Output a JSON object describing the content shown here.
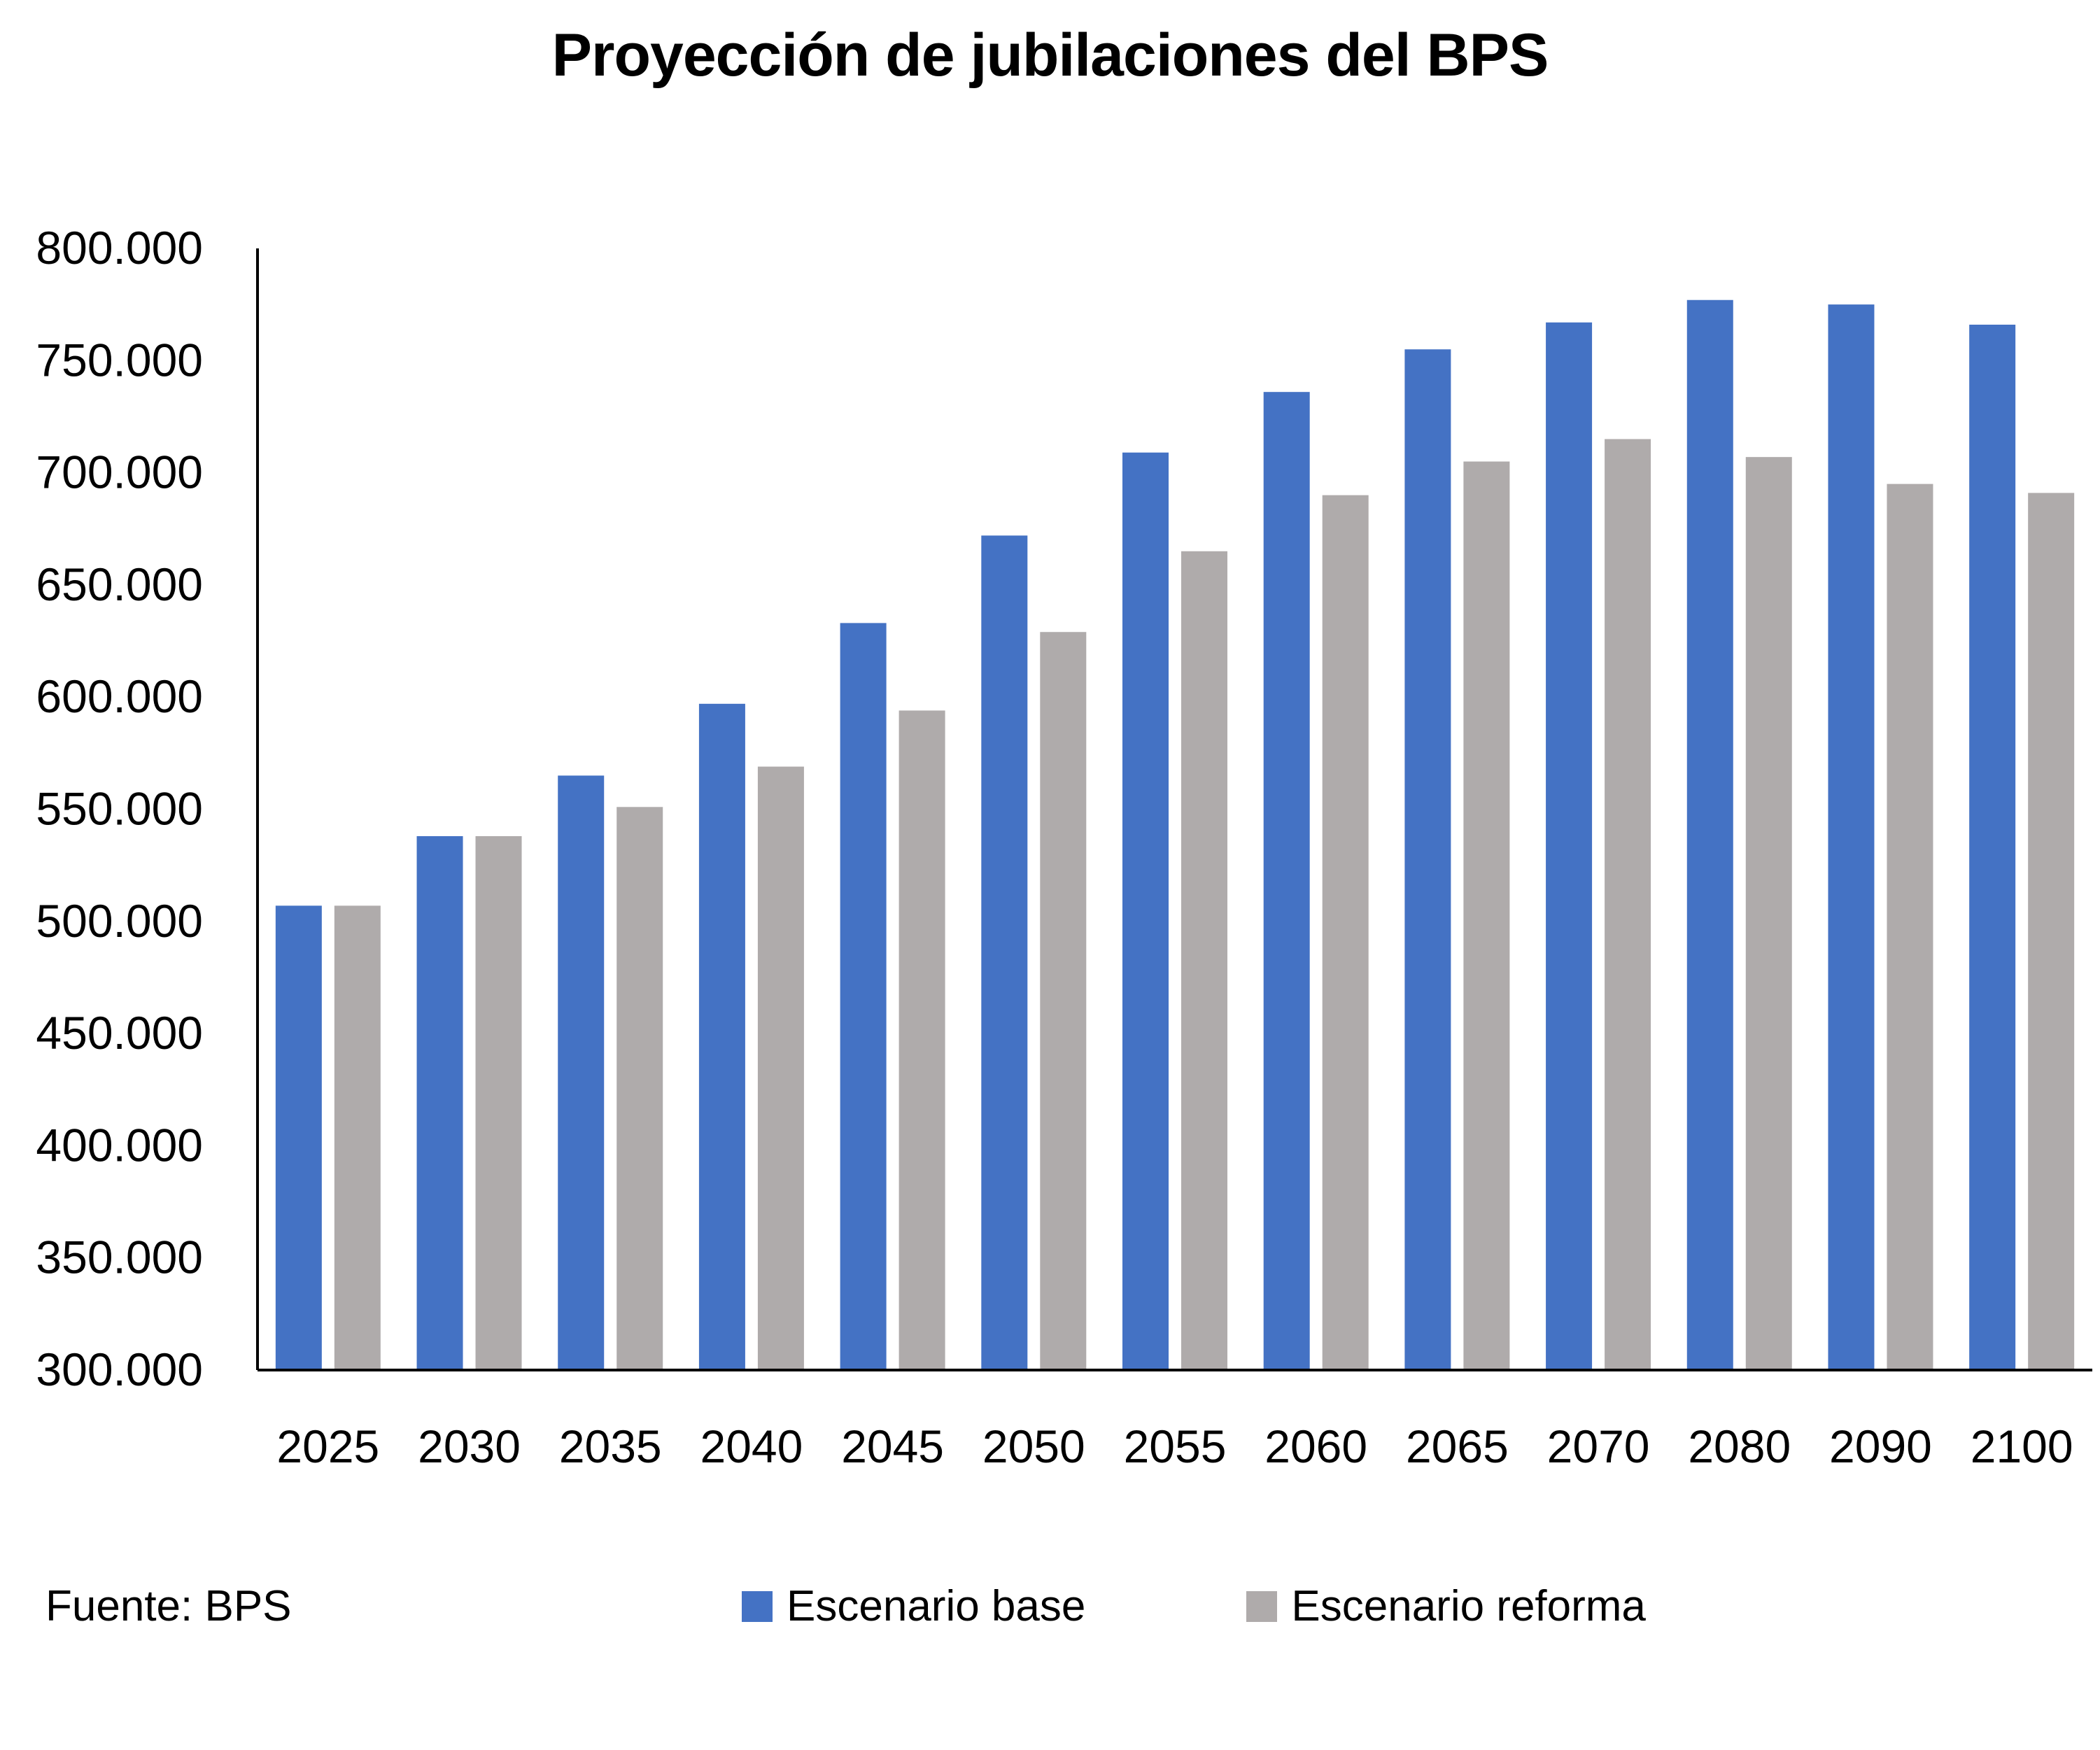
{
  "chart_data": {
    "type": "bar",
    "title": "Proyección de jubilaciones del BPS",
    "categories": [
      "2025",
      "2030",
      "2035",
      "2040",
      "2045",
      "2050",
      "2055",
      "2060",
      "2065",
      "2070",
      "2080",
      "2090",
      "2100"
    ],
    "series": [
      {
        "name": "Escenario base",
        "color": "#4472C4",
        "values": [
          507000,
          538000,
          565000,
          597000,
          633000,
          672000,
          709000,
          736000,
          755000,
          767000,
          777000,
          775000,
          766000
        ]
      },
      {
        "name": "Escenario reforma",
        "color": "#AFABAB",
        "values": [
          507000,
          538000,
          551000,
          569000,
          594000,
          629000,
          665000,
          690000,
          705000,
          715000,
          707000,
          695000,
          691000
        ]
      }
    ],
    "ylim": [
      300000,
      800000
    ],
    "yticks": [
      300000,
      350000,
      400000,
      450000,
      500000,
      550000,
      600000,
      650000,
      700000,
      750000,
      800000
    ],
    "ytick_labels": [
      "300.000",
      "350.000",
      "400.000",
      "450.000",
      "500.000",
      "550.000",
      "600.000",
      "650.000",
      "700.000",
      "750.000",
      "800.000"
    ],
    "xlabel": "",
    "ylabel": "",
    "grid": false,
    "legend_position": "bottom"
  },
  "source_note": "Fuente: BPS"
}
